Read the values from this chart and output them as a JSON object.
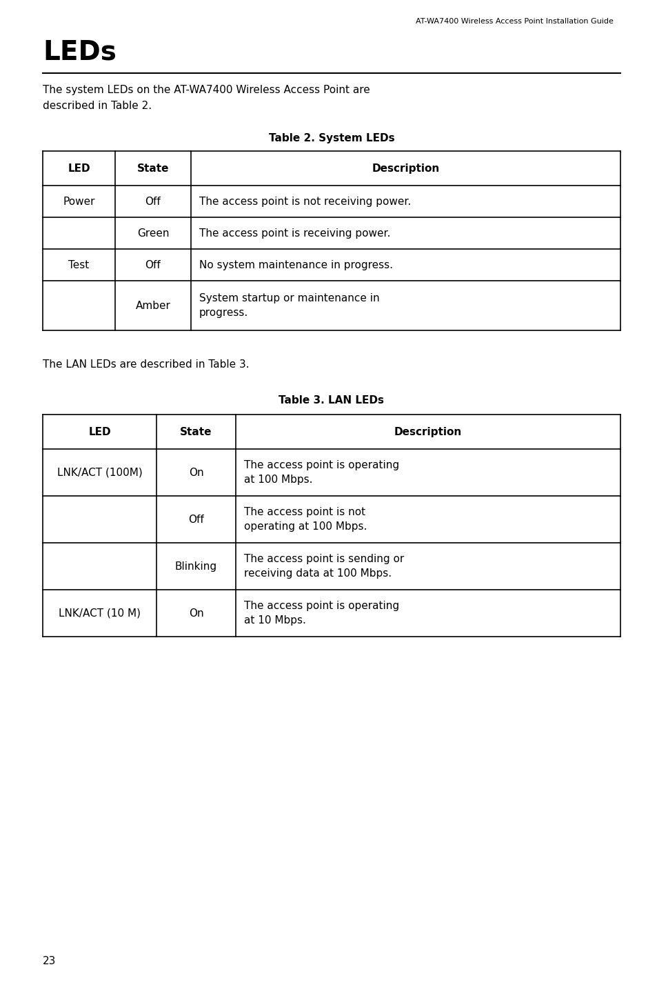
{
  "page_header": "AT-WA7400 Wireless Access Point Installation Guide",
  "title": "LEDs",
  "intro_text1": "The system LEDs on the AT-WA7400 Wireless Access Point are\ndescribed in Table 2.",
  "table2_caption": "Table 2. System LEDs",
  "table2_headers": [
    "LED",
    "State",
    "Description"
  ],
  "table2_rows": [
    [
      "Power",
      "Off",
      "The access point is not receiving power."
    ],
    [
      "",
      "Green",
      "The access point is receiving power."
    ],
    [
      "Test",
      "Off",
      "No system maintenance in progress."
    ],
    [
      "",
      "Amber",
      "System startup or maintenance in\nprogress."
    ]
  ],
  "intro_text2": "The LAN LEDs are described in Table 3.",
  "table3_caption": "Table 3. LAN LEDs",
  "table3_headers": [
    "LED",
    "State",
    "Description"
  ],
  "table3_rows": [
    [
      "LNK/ACT (100M)",
      "On",
      "The access point is operating\nat 100 Mbps."
    ],
    [
      "",
      "Off",
      "The access point is not\noperating at 100 Mbps."
    ],
    [
      "",
      "Blinking",
      "The access point is sending or\nreceiving data at 100 Mbps."
    ],
    [
      "LNK/ACT (10 M)",
      "On",
      "The access point is operating\nat 10 Mbps."
    ]
  ],
  "page_number": "23",
  "bg_color": "#ffffff",
  "text_color": "#000000"
}
